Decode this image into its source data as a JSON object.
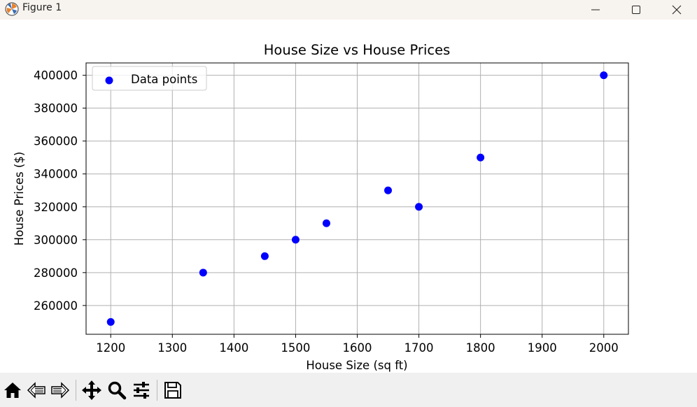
{
  "window": {
    "title": "Figure 1",
    "app_icon": "matplotlib-icon",
    "controls": [
      "minimize-icon",
      "maximize-icon",
      "close-icon"
    ]
  },
  "toolbar": {
    "buttons": [
      "home-icon",
      "back-arrow-icon",
      "forward-arrow-icon",
      "pan-move-icon",
      "zoom-magnifier-icon",
      "configure-subplots-icon",
      "save-floppy-icon"
    ]
  },
  "chart_data": {
    "type": "scatter",
    "title": "House Size vs House Prices",
    "xlabel": "House Size (sq ft)",
    "ylabel": "House Prices ($)",
    "xlim": [
      1160,
      2040
    ],
    "ylim": [
      242500,
      407500
    ],
    "xticks": [
      1200,
      1300,
      1400,
      1500,
      1600,
      1700,
      1800,
      1900,
      2000
    ],
    "yticks": [
      260000,
      280000,
      300000,
      320000,
      340000,
      360000,
      380000,
      400000
    ],
    "grid": true,
    "legend_position": "upper-left",
    "series": [
      {
        "name": "Data points",
        "color": "#0000ff",
        "x": [
          1200,
          1350,
          1450,
          1500,
          1550,
          1650,
          1700,
          1800,
          2000
        ],
        "y": [
          250000,
          280000,
          290000,
          300000,
          310000,
          330000,
          320000,
          350000,
          400000
        ]
      }
    ]
  }
}
